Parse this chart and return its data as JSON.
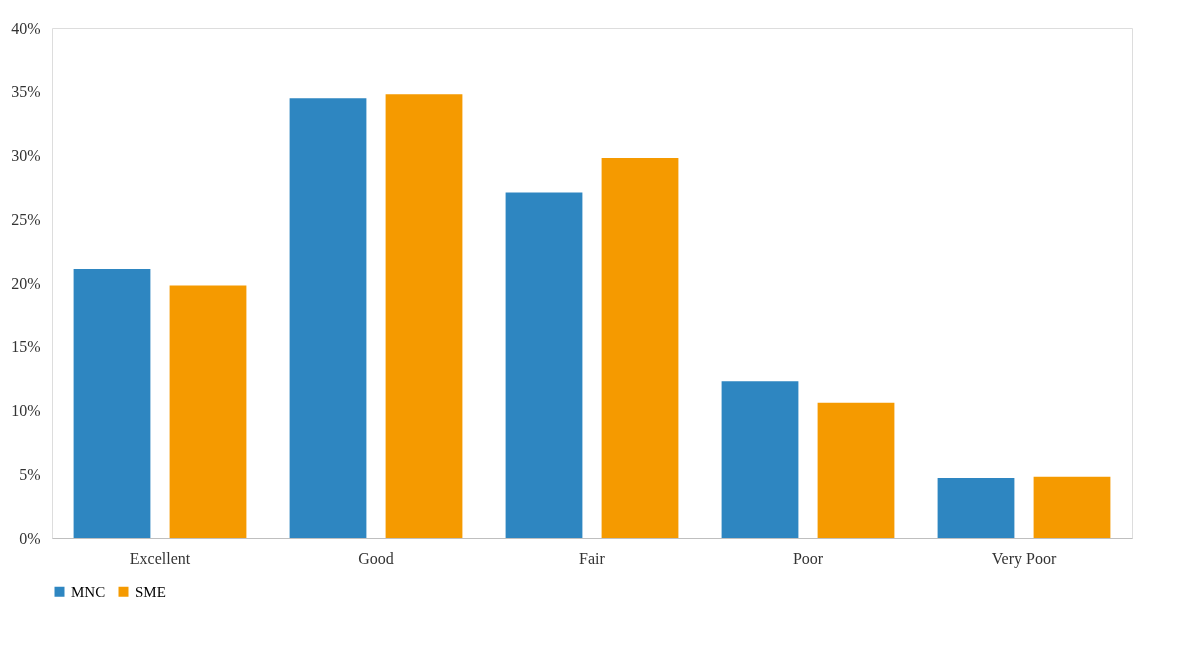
{
  "chart_data": {
    "type": "bar",
    "categories": [
      "Excellent",
      "Good",
      "Fair",
      "Poor",
      "Very Poor"
    ],
    "series": [
      {
        "name": "MNC",
        "color": "#2e86c1",
        "values": [
          21.1,
          34.5,
          27.1,
          12.3,
          4.7
        ]
      },
      {
        "name": "SME",
        "color": "#f59a00",
        "values": [
          19.8,
          34.8,
          29.8,
          10.6,
          4.8
        ]
      }
    ],
    "ylim": [
      0,
      40
    ],
    "yticks": [
      {
        "value": 0,
        "label": "0%"
      },
      {
        "value": 5,
        "label": "5%"
      },
      {
        "value": 10,
        "label": "10%"
      },
      {
        "value": 15,
        "label": "15%"
      },
      {
        "value": 20,
        "label": "20%"
      },
      {
        "value": 25,
        "label": "25%"
      },
      {
        "value": 30,
        "label": "30%"
      },
      {
        "value": 35,
        "label": "35%"
      },
      {
        "value": 40,
        "label": "40%"
      }
    ],
    "grid": false,
    "legend": "bottom"
  }
}
